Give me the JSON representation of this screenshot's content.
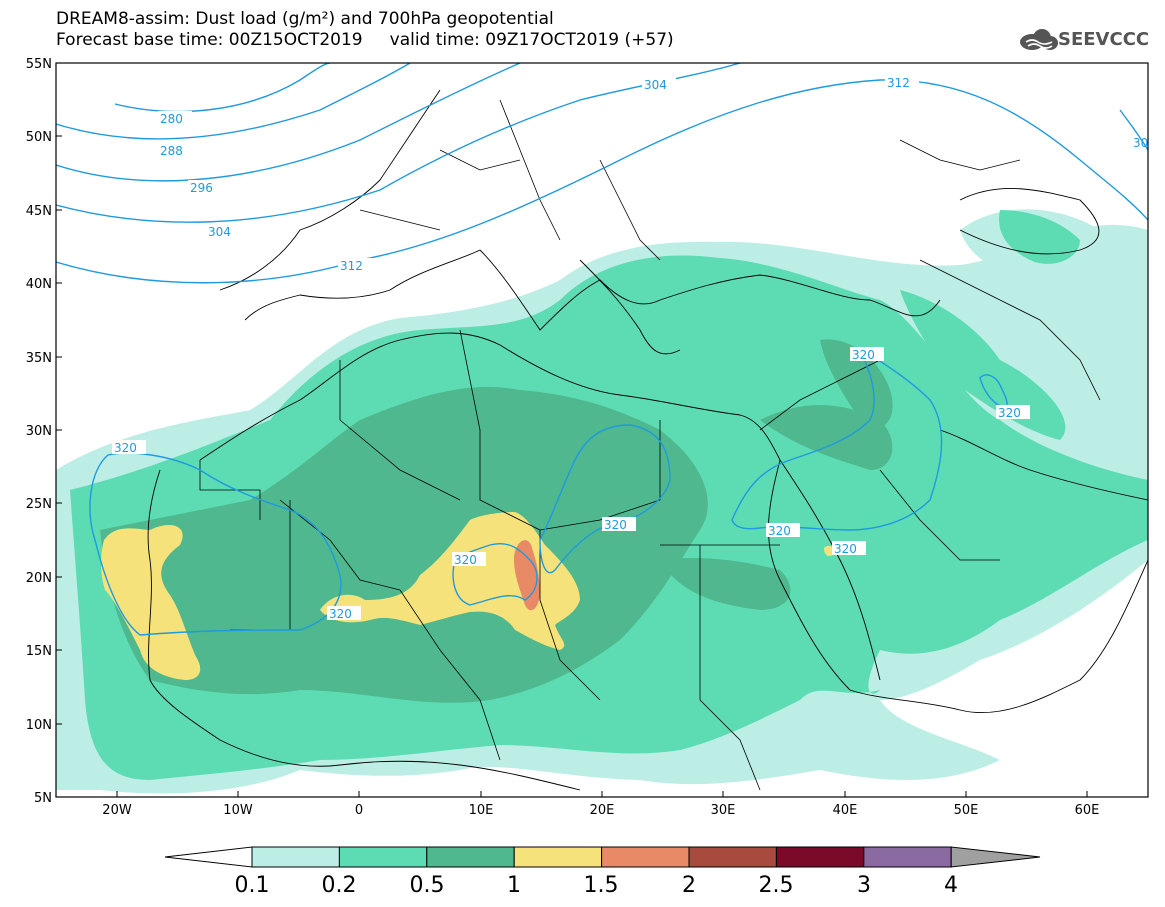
{
  "header": {
    "title_line1": "DREAM8-assim: Dust load (g/m²) and 700hPa geopotential",
    "title_line2": "Forecast base time: 00Z15OCT2019     valid time: 09Z17OCT2019 (+57)"
  },
  "logo": {
    "text": "SEEVCCC",
    "icon": "cloud-logo-icon"
  },
  "map": {
    "lat_labels": [
      "55N",
      "50N",
      "45N",
      "40N",
      "35N",
      "30N",
      "25N",
      "20N",
      "15N",
      "10N",
      "5N"
    ],
    "lon_labels": [
      "20W",
      "10W",
      "0",
      "10E",
      "20E",
      "30E",
      "40E",
      "50E",
      "60E"
    ],
    "lat_range": [
      5,
      55
    ],
    "lon_range": [
      -25,
      65
    ],
    "contour_labels": [
      "280",
      "288",
      "296",
      "304",
      "312",
      "304",
      "312",
      "320",
      "320",
      "320",
      "320",
      "320",
      "320",
      "320",
      "320",
      "30"
    ]
  },
  "colorbar": {
    "labels": [
      "0.1",
      "0.2",
      "0.5",
      "1",
      "1.5",
      "2",
      "2.5",
      "3",
      "4"
    ],
    "colors": [
      "#ffffff",
      "#bdeee6",
      "#5ddcb4",
      "#4fb88e",
      "#f5e27a",
      "#e88a66",
      "#a84a3e",
      "#7a0a28",
      "#8a6aa0",
      "#a0a0a0"
    ]
  },
  "colors": {
    "contour": "#1f9ae0",
    "ocean": "#ffffff",
    "border": "#000000"
  }
}
